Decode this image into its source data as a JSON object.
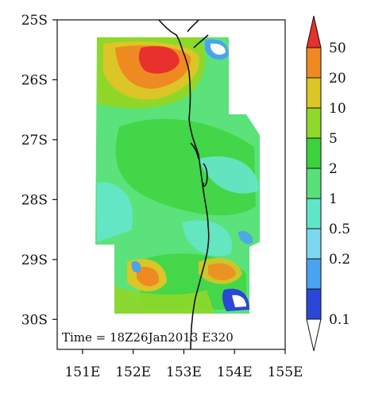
{
  "map": {
    "timestamp": "Time = 18Z26Jan2013 E320",
    "lat_labels": [
      "25S",
      "26S",
      "27S",
      "28S",
      "29S",
      "30S"
    ],
    "lon_labels": [
      "151E",
      "152E",
      "153E",
      "154E",
      "155E"
    ],
    "lat_range": [
      -30.5,
      -25
    ],
    "lon_range": [
      150.5,
      155
    ],
    "colors": {
      "cb_0_1": "#2a47d6",
      "cb_0_2": "#4aa3ee",
      "cb_0_5": "#5fe6c6",
      "cb_1": "#57e07a",
      "cb_2": "#3cd23c",
      "cb_5": "#8fd82a",
      "cb_10": "#dcc526",
      "cb_20": "#ef8a22",
      "cb_50": "#e8302c",
      "coastline": "#111111"
    }
  },
  "colorbar": {
    "labels": [
      "50",
      "20",
      "10",
      "5",
      "2",
      "1",
      "0.5",
      "0.2",
      "0.1"
    ]
  }
}
